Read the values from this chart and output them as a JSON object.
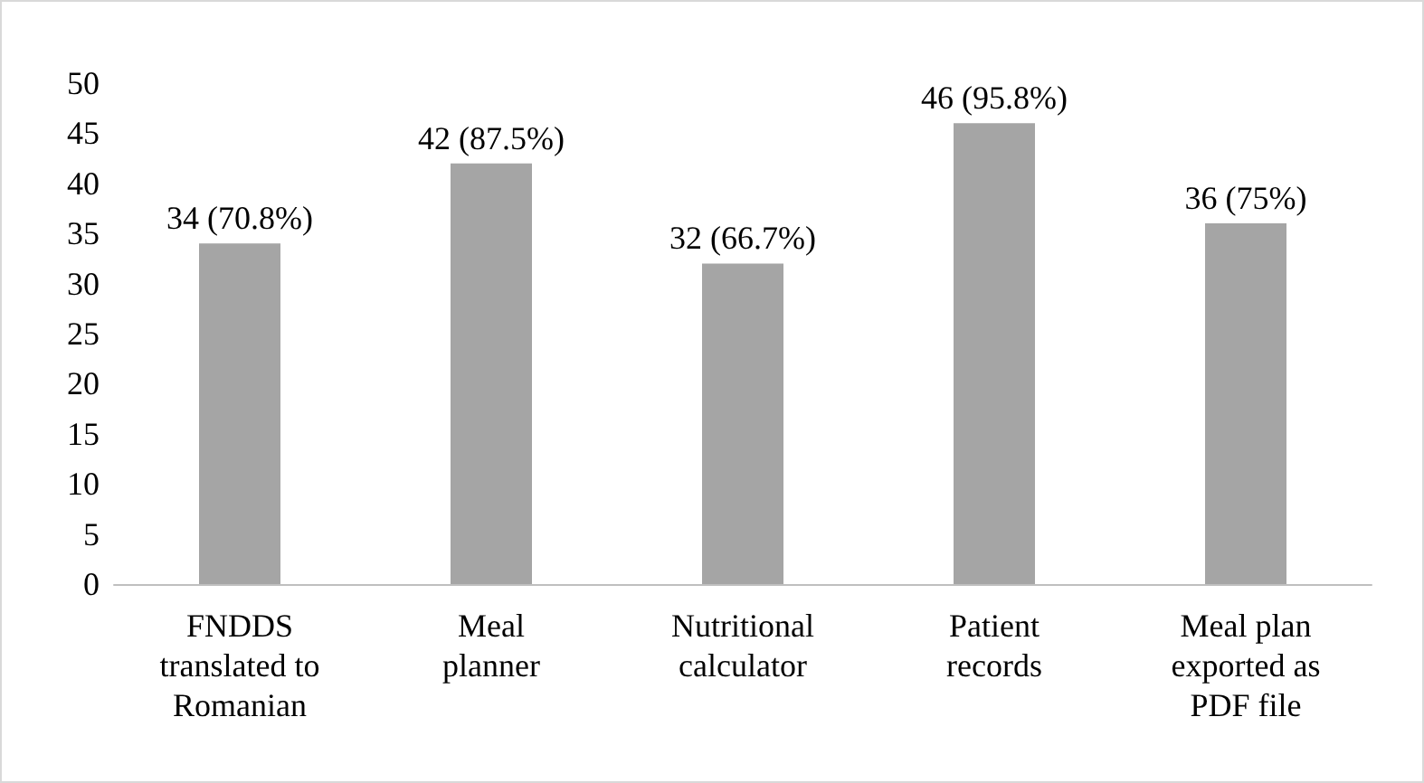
{
  "chart_data": {
    "type": "bar",
    "categories": [
      "FNDDS\ntranslated to\nRomanian",
      "Meal\nplanner",
      "Nutritional\ncalculator",
      "Patient\nrecords",
      "Meal plan\nexported as\nPDF file"
    ],
    "values": [
      34,
      42,
      32,
      46,
      36
    ],
    "value_labels": [
      "34 (70.8%)",
      "42 (87.5%)",
      "32 (66.7%)",
      "46 (95.8%)",
      "36 (75%)"
    ],
    "color": "#a5a5a5",
    "ylim": [
      0,
      50
    ],
    "yticks": [
      0,
      5,
      10,
      15,
      20,
      25,
      30,
      35,
      40,
      45,
      50
    ],
    "grid": false
  }
}
